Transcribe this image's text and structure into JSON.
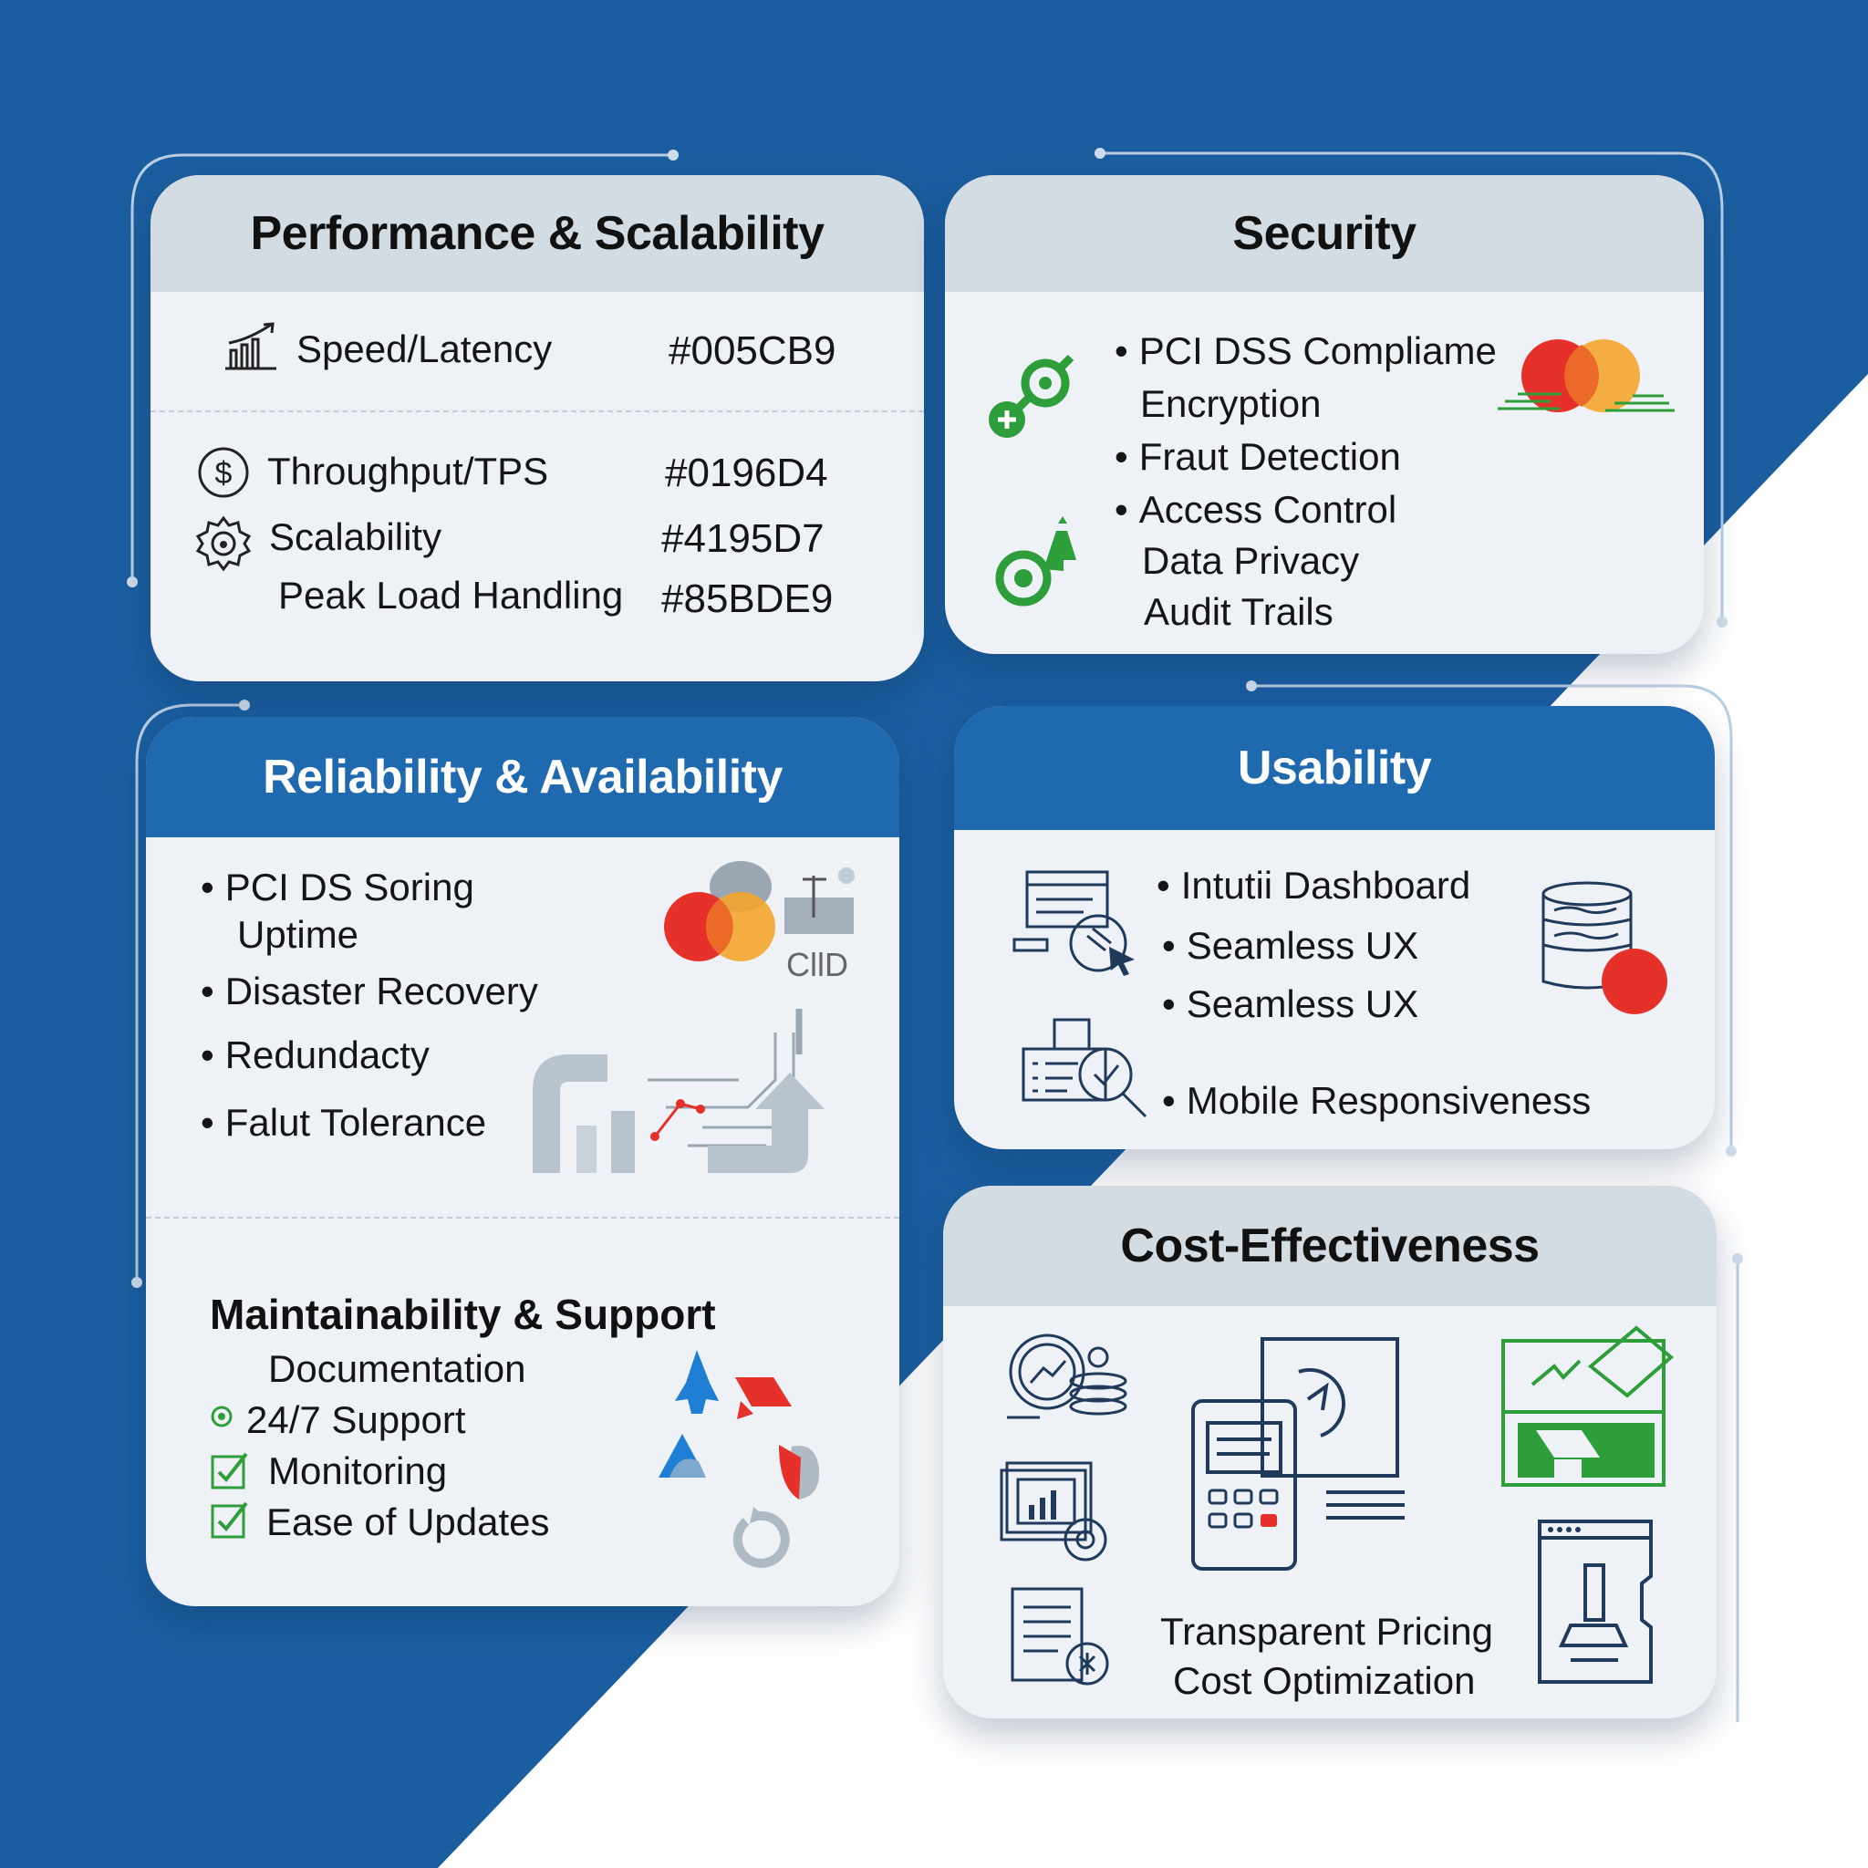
{
  "colors": {
    "brand_blue": "#1b5e9f",
    "header_blue": "#1f69ae",
    "header_gray": "#d3dbe3",
    "card_bg": "#eef2f6",
    "icon_green": "#2e9e3a",
    "accent_red": "#e5312a",
    "accent_orange": "#f3a52c"
  },
  "performance": {
    "title": "Performance & Scalability",
    "rows": [
      {
        "label": "Speed/Latency",
        "value": "#005CB9",
        "icon": "chart-growth-icon"
      },
      {
        "label": "Throughput/TPS",
        "value": "#0196D4",
        "icon": "dollar-circle-icon"
      },
      {
        "label": "Scalability",
        "value": "#4195D7",
        "icon": "gear-icon"
      },
      {
        "label": "Peak Load Handling",
        "value": "#85BDE9"
      }
    ]
  },
  "security": {
    "title": "Security",
    "items": [
      "PCI DSS Compliame",
      "Encryption",
      "Fraut Detection",
      "Access Control",
      "Data Privacy",
      "Audit Trails"
    ]
  },
  "reliability": {
    "title": "Reliability & Availability",
    "items": [
      "PCI DS Soring",
      "Uptime",
      "Disaster Recovery",
      "Redundacty",
      "Falut Tolerance"
    ],
    "cloud_label": "CllD"
  },
  "maintainability": {
    "title": "Maintainability & Support",
    "items": [
      "Documentation",
      "24/7 Support",
      "Monitoring",
      "Ease of Updates"
    ]
  },
  "usability": {
    "title": "Usability",
    "items": [
      "Intutii Dashboard",
      "Seamless UX",
      "Seamless UX",
      "Mobile Responsiveness"
    ]
  },
  "cost": {
    "title": "Cost-Effectiveness",
    "items": [
      "Transparent Pricing",
      "Cost Optimization"
    ]
  }
}
